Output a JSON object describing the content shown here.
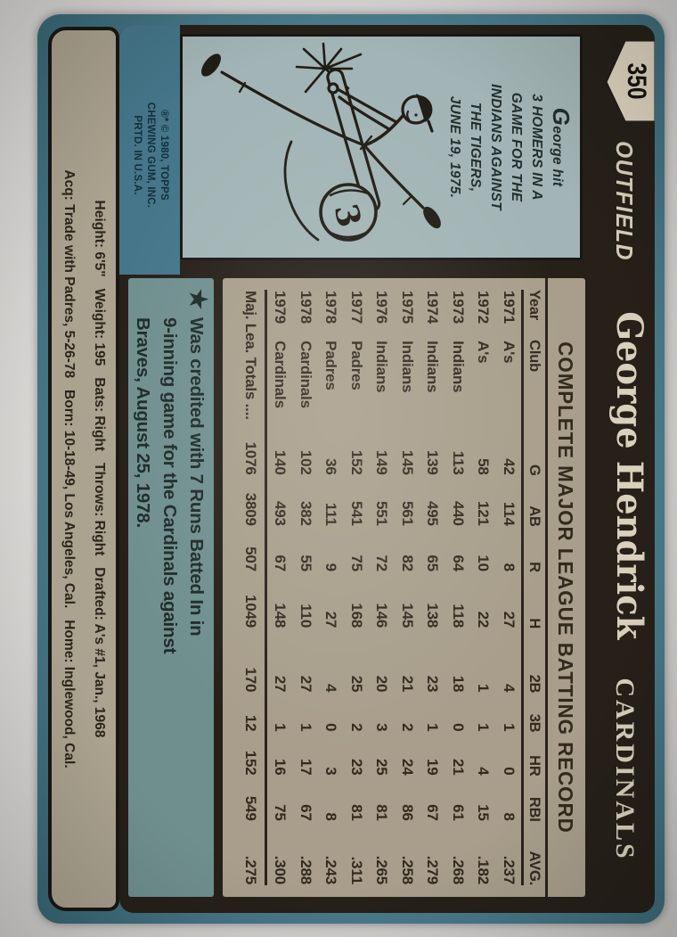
{
  "card": {
    "header": {
      "number": "350",
      "position": "OUTFIELD",
      "player": "George Hendrick",
      "team": "CARDINALS"
    },
    "cartoon": {
      "caption_lines": [
        "George hit",
        "3 HOMERS IN A",
        "GAME FOR THE",
        "INDIANS AGAINST",
        "THE TIGERS,",
        "JUNE 19, 1975."
      ],
      "ball_label": "3"
    },
    "stats": {
      "title": "COMPLETE MAJOR LEAGUE BATTING RECORD",
      "columns": [
        "Year",
        "Club",
        "G",
        "AB",
        "R",
        "H",
        "2B",
        "3B",
        "HR",
        "RBI",
        "AVG."
      ],
      "rows": [
        [
          "1971",
          "A's",
          "42",
          "114",
          "8",
          "27",
          "4",
          "1",
          "0",
          "8",
          ".237"
        ],
        [
          "1972",
          "A's",
          "58",
          "121",
          "10",
          "22",
          "1",
          "1",
          "4",
          "15",
          ".182"
        ],
        [
          "1973",
          "Indians",
          "113",
          "440",
          "64",
          "118",
          "18",
          "0",
          "21",
          "61",
          ".268"
        ],
        [
          "1974",
          "Indians",
          "139",
          "495",
          "65",
          "138",
          "23",
          "1",
          "19",
          "67",
          ".279"
        ],
        [
          "1975",
          "Indians",
          "145",
          "561",
          "82",
          "145",
          "21",
          "2",
          "24",
          "86",
          ".258"
        ],
        [
          "1976",
          "Indians",
          "149",
          "551",
          "72",
          "146",
          "20",
          "3",
          "25",
          "81",
          ".265"
        ],
        [
          "1977",
          "Padres",
          "152",
          "541",
          "75",
          "168",
          "25",
          "2",
          "23",
          "81",
          ".311"
        ],
        [
          "1978",
          "Padres",
          "36",
          "111",
          "9",
          "27",
          "4",
          "0",
          "3",
          "8",
          ".243"
        ],
        [
          "1978",
          "Cardinals",
          "102",
          "382",
          "55",
          "110",
          "27",
          "1",
          "17",
          "67",
          ".288"
        ],
        [
          "1979",
          "Cardinals",
          "140",
          "493",
          "67",
          "148",
          "27",
          "1",
          "16",
          "75",
          ".300"
        ]
      ],
      "totals": {
        "label": "Maj. Lea. Totals",
        "leader": "  ....",
        "values": [
          "1076",
          "3809",
          "507",
          "1049",
          "170",
          "12",
          "152",
          "549",
          ".275"
        ]
      }
    },
    "note": {
      "star": "★",
      "lines": [
        "Was credited with 7 Runs Batted In in",
        "9-inning game for the Cardinals against",
        "Braves, August 25, 1978."
      ]
    },
    "copyright_lines": [
      "®* © 1980, TOPPS",
      "CHEWING GUM, INC.",
      "PRTD. IN U.S.A."
    ],
    "bio": {
      "line1": "Height: 6'5\"   Weight: 195   Bats: Right   Throws: Right   Drafted: A's #1, Jan., 1968",
      "line2": "Acq: Trade with Padres, 5-26-78   Born: 10-18-49, Los Angeles, Cal.   Home: Inglewood, Cal."
    },
    "colors": {
      "card_teal": "#4a7c8c",
      "panel_black": "#262019",
      "stock_gray": "#a89e8b",
      "note_teal_gray": "#6f8f8e",
      "cartoon_box": "#a2b4b5",
      "cream_ink": "#d9d0bd"
    }
  }
}
